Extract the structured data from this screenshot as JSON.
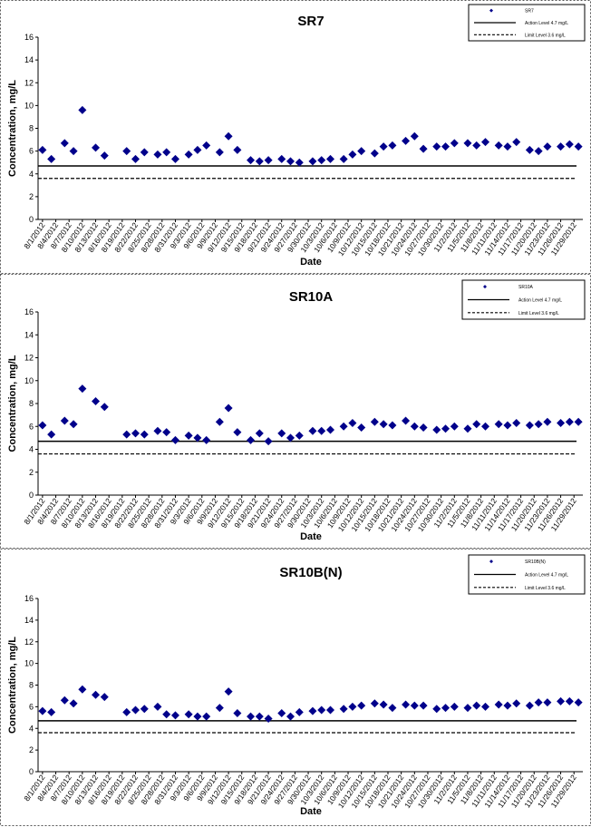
{
  "chart_data": [
    {
      "type": "scatter",
      "title": "SR7",
      "x_label": "Date",
      "y_label": "Concentration, mg/L",
      "x": [
        "2012-08-01",
        "2012-08-03",
        "2012-08-06",
        "2012-08-08",
        "2012-08-10",
        "2012-08-13",
        "2012-08-15",
        "2012-08-20",
        "2012-08-22",
        "2012-08-24",
        "2012-08-27",
        "2012-08-29",
        "2012-08-31",
        "2012-09-03",
        "2012-09-05",
        "2012-09-07",
        "2012-09-10",
        "2012-09-12",
        "2012-09-14",
        "2012-09-17",
        "2012-09-19",
        "2012-09-21",
        "2012-09-24",
        "2012-09-26",
        "2012-09-28",
        "2012-10-01",
        "2012-10-03",
        "2012-10-05",
        "2012-10-08",
        "2012-10-10",
        "2012-10-12",
        "2012-10-15",
        "2012-10-17",
        "2012-10-19",
        "2012-10-22",
        "2012-10-24",
        "2012-10-26",
        "2012-10-29",
        "2012-10-31",
        "2012-11-02",
        "2012-11-05",
        "2012-11-07",
        "2012-11-09",
        "2012-11-12",
        "2012-11-14",
        "2012-11-16",
        "2012-11-19",
        "2012-11-21",
        "2012-11-23",
        "2012-11-26",
        "2012-11-28",
        "2012-11-30"
      ],
      "series": [
        {
          "name": "SR7",
          "color": "#00008b",
          "values": [
            6.1,
            5.3,
            6.7,
            6.0,
            9.6,
            6.3,
            5.6,
            6.0,
            5.3,
            5.9,
            5.7,
            5.9,
            5.3,
            5.7,
            6.1,
            6.5,
            5.9,
            7.3,
            6.1,
            5.2,
            5.1,
            5.2,
            5.3,
            5.1,
            5.0,
            5.1,
            5.2,
            5.3,
            5.3,
            5.7,
            6.0,
            5.8,
            6.4,
            6.5,
            6.9,
            7.3,
            6.2,
            6.4,
            6.4,
            6.7,
            6.7,
            6.5,
            6.8,
            6.5,
            6.4,
            6.8,
            6.1,
            6.0,
            6.4,
            6.4,
            6.6,
            6.4
          ]
        }
      ],
      "reference_lines": [
        {
          "name": "Action Level 4.7 mg/L",
          "value": 4.7,
          "style": "solid"
        },
        {
          "name": "Limit Level 3.6 mg/L",
          "value": 3.6,
          "style": "dashed"
        }
      ],
      "xlim": [
        "2012-07-31",
        "2012-12-01"
      ],
      "ylim": [
        0,
        16
      ],
      "yticks": [
        0,
        2,
        4,
        6,
        8,
        10,
        12,
        14,
        16
      ],
      "xticks": [
        {
          "value": "2012-08-01",
          "label": "8/1/2012"
        },
        {
          "value": "2012-08-04",
          "label": "8/4/2012"
        },
        {
          "value": "2012-08-07",
          "label": "8/7/2012"
        },
        {
          "value": "2012-08-10",
          "label": "8/10/2012"
        },
        {
          "value": "2012-08-13",
          "label": "8/13/2012"
        },
        {
          "value": "2012-08-16",
          "label": "8/16/2012"
        },
        {
          "value": "2012-08-19",
          "label": "8/19/2012"
        },
        {
          "value": "2012-08-22",
          "label": "8/22/2012"
        },
        {
          "value": "2012-08-25",
          "label": "8/25/2012"
        },
        {
          "value": "2012-08-28",
          "label": "8/28/2012"
        },
        {
          "value": "2012-08-31",
          "label": "8/31/2012"
        },
        {
          "value": "2012-09-03",
          "label": "9/3/2012"
        },
        {
          "value": "2012-09-06",
          "label": "9/6/2012"
        },
        {
          "value": "2012-09-09",
          "label": "9/9/2012"
        },
        {
          "value": "2012-09-12",
          "label": "9/12/2012"
        },
        {
          "value": "2012-09-15",
          "label": "9/15/2012"
        },
        {
          "value": "2012-09-18",
          "label": "9/18/2012"
        },
        {
          "value": "2012-09-21",
          "label": "9/21/2012"
        },
        {
          "value": "2012-09-24",
          "label": "9/24/2012"
        },
        {
          "value": "2012-09-27",
          "label": "9/27/2012"
        },
        {
          "value": "2012-09-30",
          "label": "9/30/2012"
        },
        {
          "value": "2012-10-03",
          "label": "10/3/2012"
        },
        {
          "value": "2012-10-06",
          "label": "10/6/2012"
        },
        {
          "value": "2012-10-09",
          "label": "10/9/2012"
        },
        {
          "value": "2012-10-12",
          "label": "10/12/2012"
        },
        {
          "value": "2012-10-15",
          "label": "10/15/2012"
        },
        {
          "value": "2012-10-18",
          "label": "10/18/2012"
        },
        {
          "value": "2012-10-21",
          "label": "10/21/2012"
        },
        {
          "value": "2012-10-24",
          "label": "10/24/2012"
        },
        {
          "value": "2012-10-27",
          "label": "10/27/2012"
        },
        {
          "value": "2012-10-30",
          "label": "10/30/2012"
        },
        {
          "value": "2012-11-02",
          "label": "11/2/2012"
        },
        {
          "value": "2012-11-05",
          "label": "11/5/2012"
        },
        {
          "value": "2012-11-08",
          "label": "11/8/2012"
        },
        {
          "value": "2012-11-11",
          "label": "11/11/2012"
        },
        {
          "value": "2012-11-14",
          "label": "11/14/2012"
        },
        {
          "value": "2012-11-17",
          "label": "11/17/2012"
        },
        {
          "value": "2012-11-20",
          "label": "11/20/2012"
        },
        {
          "value": "2012-11-23",
          "label": "11/23/2012"
        },
        {
          "value": "2012-11-26",
          "label": "11/26/2012"
        },
        {
          "value": "2012-11-29",
          "label": "11/29/2012"
        }
      ]
    },
    {
      "type": "scatter",
      "title": "SR10A",
      "x_label": "Date",
      "y_label": "Concentration, mg/L",
      "x": [
        "2012-08-01",
        "2012-08-03",
        "2012-08-06",
        "2012-08-08",
        "2012-08-10",
        "2012-08-13",
        "2012-08-15",
        "2012-08-20",
        "2012-08-22",
        "2012-08-24",
        "2012-08-27",
        "2012-08-29",
        "2012-08-31",
        "2012-09-03",
        "2012-09-05",
        "2012-09-07",
        "2012-09-10",
        "2012-09-12",
        "2012-09-14",
        "2012-09-17",
        "2012-09-19",
        "2012-09-21",
        "2012-09-24",
        "2012-09-26",
        "2012-09-28",
        "2012-10-01",
        "2012-10-03",
        "2012-10-05",
        "2012-10-08",
        "2012-10-10",
        "2012-10-12",
        "2012-10-15",
        "2012-10-17",
        "2012-10-19",
        "2012-10-22",
        "2012-10-24",
        "2012-10-26",
        "2012-10-29",
        "2012-10-31",
        "2012-11-02",
        "2012-11-05",
        "2012-11-07",
        "2012-11-09",
        "2012-11-12",
        "2012-11-14",
        "2012-11-16",
        "2012-11-19",
        "2012-11-21",
        "2012-11-23",
        "2012-11-26",
        "2012-11-28",
        "2012-11-30"
      ],
      "series": [
        {
          "name": "SR10A",
          "color": "#00008b",
          "values": [
            6.1,
            5.3,
            6.5,
            6.2,
            9.3,
            8.2,
            7.7,
            5.3,
            5.4,
            5.3,
            5.6,
            5.5,
            4.8,
            5.2,
            5.0,
            4.8,
            6.4,
            7.6,
            5.5,
            4.8,
            5.4,
            4.7,
            5.4,
            5.0,
            5.2,
            5.6,
            5.6,
            5.7,
            6.0,
            6.3,
            5.9,
            6.4,
            6.2,
            6.1,
            6.5,
            6.0,
            5.9,
            5.7,
            5.8,
            6.0,
            5.8,
            6.2,
            6.0,
            6.2,
            6.1,
            6.3,
            6.1,
            6.2,
            6.4,
            6.3,
            6.4,
            6.4
          ]
        }
      ],
      "reference_lines": [
        {
          "name": "Action Level 4.7 mg/L",
          "value": 4.7,
          "style": "solid"
        },
        {
          "name": "Limit Level 3.6 mg/L",
          "value": 3.6,
          "style": "dashed"
        }
      ],
      "xlim": [
        "2012-07-31",
        "2012-12-01"
      ],
      "ylim": [
        0,
        16
      ],
      "yticks": [
        0,
        2,
        4,
        6,
        8,
        10,
        12,
        14,
        16
      ],
      "xticks": [
        {
          "value": "2012-08-01",
          "label": "8/1/2012"
        },
        {
          "value": "2012-08-04",
          "label": "8/4/2012"
        },
        {
          "value": "2012-08-07",
          "label": "8/7/2012"
        },
        {
          "value": "2012-08-10",
          "label": "8/10/2012"
        },
        {
          "value": "2012-08-13",
          "label": "8/13/2012"
        },
        {
          "value": "2012-08-16",
          "label": "8/16/2012"
        },
        {
          "value": "2012-08-19",
          "label": "8/19/2012"
        },
        {
          "value": "2012-08-22",
          "label": "8/22/2012"
        },
        {
          "value": "2012-08-25",
          "label": "8/25/2012"
        },
        {
          "value": "2012-08-28",
          "label": "8/28/2012"
        },
        {
          "value": "2012-08-31",
          "label": "8/31/2012"
        },
        {
          "value": "2012-09-03",
          "label": "9/3/2012"
        },
        {
          "value": "2012-09-06",
          "label": "9/6/2012"
        },
        {
          "value": "2012-09-09",
          "label": "9/9/2012"
        },
        {
          "value": "2012-09-12",
          "label": "9/12/2012"
        },
        {
          "value": "2012-09-15",
          "label": "9/15/2012"
        },
        {
          "value": "2012-09-18",
          "label": "9/18/2012"
        },
        {
          "value": "2012-09-21",
          "label": "9/21/2012"
        },
        {
          "value": "2012-09-24",
          "label": "9/24/2012"
        },
        {
          "value": "2012-09-27",
          "label": "9/27/2012"
        },
        {
          "value": "2012-09-30",
          "label": "9/30/2012"
        },
        {
          "value": "2012-10-03",
          "label": "10/3/2012"
        },
        {
          "value": "2012-10-06",
          "label": "10/6/2012"
        },
        {
          "value": "2012-10-09",
          "label": "10/9/2012"
        },
        {
          "value": "2012-10-12",
          "label": "10/12/2012"
        },
        {
          "value": "2012-10-15",
          "label": "10/15/2012"
        },
        {
          "value": "2012-10-18",
          "label": "10/18/2012"
        },
        {
          "value": "2012-10-21",
          "label": "10/21/2012"
        },
        {
          "value": "2012-10-24",
          "label": "10/24/2012"
        },
        {
          "value": "2012-10-27",
          "label": "10/27/2012"
        },
        {
          "value": "2012-10-30",
          "label": "10/30/2012"
        },
        {
          "value": "2012-11-02",
          "label": "11/2/2012"
        },
        {
          "value": "2012-11-05",
          "label": "11/5/2012"
        },
        {
          "value": "2012-11-08",
          "label": "11/8/2012"
        },
        {
          "value": "2012-11-11",
          "label": "11/11/2012"
        },
        {
          "value": "2012-11-14",
          "label": "11/14/2012"
        },
        {
          "value": "2012-11-17",
          "label": "11/17/2012"
        },
        {
          "value": "2012-11-20",
          "label": "11/20/2012"
        },
        {
          "value": "2012-11-23",
          "label": "11/23/2012"
        },
        {
          "value": "2012-11-26",
          "label": "11/26/2012"
        },
        {
          "value": "2012-11-29",
          "label": "11/29/2012"
        }
      ]
    },
    {
      "type": "scatter",
      "title": "SR10B(N)",
      "x_label": "Date",
      "y_label": "Concentration, mg/L",
      "x": [
        "2012-08-01",
        "2012-08-03",
        "2012-08-06",
        "2012-08-08",
        "2012-08-10",
        "2012-08-13",
        "2012-08-15",
        "2012-08-20",
        "2012-08-22",
        "2012-08-24",
        "2012-08-27",
        "2012-08-29",
        "2012-08-31",
        "2012-09-03",
        "2012-09-05",
        "2012-09-07",
        "2012-09-10",
        "2012-09-12",
        "2012-09-14",
        "2012-09-17",
        "2012-09-19",
        "2012-09-21",
        "2012-09-24",
        "2012-09-26",
        "2012-09-28",
        "2012-10-01",
        "2012-10-03",
        "2012-10-05",
        "2012-10-08",
        "2012-10-10",
        "2012-10-12",
        "2012-10-15",
        "2012-10-17",
        "2012-10-19",
        "2012-10-22",
        "2012-10-24",
        "2012-10-26",
        "2012-10-29",
        "2012-10-31",
        "2012-11-02",
        "2012-11-05",
        "2012-11-07",
        "2012-11-09",
        "2012-11-12",
        "2012-11-14",
        "2012-11-16",
        "2012-11-19",
        "2012-11-21",
        "2012-11-23",
        "2012-11-26",
        "2012-11-28",
        "2012-11-30"
      ],
      "series": [
        {
          "name": "SR10B(N)",
          "color": "#00008b",
          "values": [
            5.6,
            5.5,
            6.6,
            6.3,
            7.6,
            7.1,
            6.9,
            5.5,
            5.7,
            5.8,
            6.0,
            5.3,
            5.2,
            5.3,
            5.1,
            5.1,
            5.9,
            7.4,
            5.4,
            5.1,
            5.1,
            4.9,
            5.4,
            5.1,
            5.5,
            5.6,
            5.7,
            5.7,
            5.8,
            6.0,
            6.1,
            6.3,
            6.2,
            5.9,
            6.2,
            6.1,
            6.1,
            5.8,
            5.9,
            6.0,
            5.9,
            6.1,
            6.0,
            6.2,
            6.1,
            6.3,
            6.1,
            6.4,
            6.4,
            6.5,
            6.5,
            6.4
          ]
        }
      ],
      "reference_lines": [
        {
          "name": "Action Level 4.7 mg/L",
          "value": 4.7,
          "style": "solid"
        },
        {
          "name": "Limit Level 3.6 mg/L",
          "value": 3.6,
          "style": "dashed"
        }
      ],
      "xlim": [
        "2012-07-31",
        "2012-12-01"
      ],
      "ylim": [
        0,
        16
      ],
      "yticks": [
        0,
        2,
        4,
        6,
        8,
        10,
        12,
        14,
        16
      ],
      "xticks": [
        {
          "value": "2012-08-01",
          "label": "8/1/2012"
        },
        {
          "value": "2012-08-04",
          "label": "8/4/2012"
        },
        {
          "value": "2012-08-07",
          "label": "8/7/2012"
        },
        {
          "value": "2012-08-10",
          "label": "8/10/2012"
        },
        {
          "value": "2012-08-13",
          "label": "8/13/2012"
        },
        {
          "value": "2012-08-16",
          "label": "8/16/2012"
        },
        {
          "value": "2012-08-19",
          "label": "8/19/2012"
        },
        {
          "value": "2012-08-22",
          "label": "8/22/2012"
        },
        {
          "value": "2012-08-25",
          "label": "8/25/2012"
        },
        {
          "value": "2012-08-28",
          "label": "8/28/2012"
        },
        {
          "value": "2012-08-31",
          "label": "8/31/2012"
        },
        {
          "value": "2012-09-03",
          "label": "9/3/2012"
        },
        {
          "value": "2012-09-06",
          "label": "9/6/2012"
        },
        {
          "value": "2012-09-09",
          "label": "9/9/2012"
        },
        {
          "value": "2012-09-12",
          "label": "9/12/2012"
        },
        {
          "value": "2012-09-15",
          "label": "9/15/2012"
        },
        {
          "value": "2012-09-18",
          "label": "9/18/2012"
        },
        {
          "value": "2012-09-21",
          "label": "9/21/2012"
        },
        {
          "value": "2012-09-24",
          "label": "9/24/2012"
        },
        {
          "value": "2012-09-27",
          "label": "9/27/2012"
        },
        {
          "value": "2012-09-30",
          "label": "9/30/2012"
        },
        {
          "value": "2012-10-03",
          "label": "10/3/2012"
        },
        {
          "value": "2012-10-06",
          "label": "10/6/2012"
        },
        {
          "value": "2012-10-09",
          "label": "10/9/2012"
        },
        {
          "value": "2012-10-12",
          "label": "10/12/2012"
        },
        {
          "value": "2012-10-15",
          "label": "10/15/2012"
        },
        {
          "value": "2012-10-18",
          "label": "10/18/2012"
        },
        {
          "value": "2012-10-21",
          "label": "10/21/2012"
        },
        {
          "value": "2012-10-24",
          "label": "10/24/2012"
        },
        {
          "value": "2012-10-27",
          "label": "10/27/2012"
        },
        {
          "value": "2012-10-30",
          "label": "10/30/2012"
        },
        {
          "value": "2012-11-02",
          "label": "11/2/2012"
        },
        {
          "value": "2012-11-05",
          "label": "11/5/2012"
        },
        {
          "value": "2012-11-08",
          "label": "11/8/2012"
        },
        {
          "value": "2012-11-11",
          "label": "11/11/2012"
        },
        {
          "value": "2012-11-14",
          "label": "11/14/2012"
        },
        {
          "value": "2012-11-17",
          "label": "11/17/2012"
        },
        {
          "value": "2012-11-20",
          "label": "11/20/2012"
        },
        {
          "value": "2012-11-23",
          "label": "11/23/2012"
        },
        {
          "value": "2012-11-26",
          "label": "11/26/2012"
        },
        {
          "value": "2012-11-29",
          "label": "11/29/2012"
        }
      ]
    }
  ]
}
